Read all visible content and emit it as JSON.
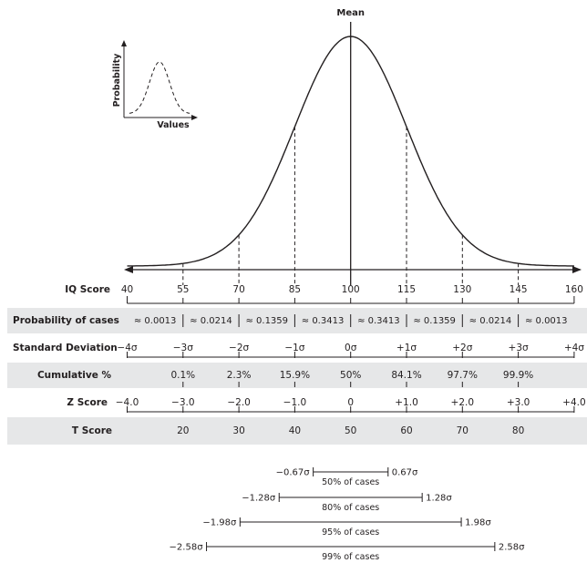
{
  "mean_label": "Mean",
  "inset": {
    "y_label": "Probability",
    "x_label": "Values"
  },
  "curve": {
    "mean": 100,
    "sd": 15,
    "x_min": 40,
    "x_max": 160
  },
  "sd_markers": [
    55,
    70,
    85,
    115,
    130,
    145
  ],
  "iq": {
    "label": "IQ Score",
    "ticks": [
      "40",
      "55",
      "70",
      "85",
      "100",
      "115",
      "130",
      "145",
      "160"
    ]
  },
  "probability": {
    "label": "Probability of cases",
    "values": [
      "≈ 0.0013",
      "≈ 0.0214",
      "≈ 0.1359",
      "≈ 0.3413",
      "≈ 0.3413",
      "≈ 0.1359",
      "≈ 0.0214",
      "≈ 0.0013"
    ]
  },
  "sd_row": {
    "label": "Standard Deviation",
    "values": [
      "−4σ",
      "−3σ",
      "−2σ",
      "−1σ",
      "0σ",
      "+1σ",
      "+2σ",
      "+3σ",
      "+4σ"
    ]
  },
  "cumulative": {
    "label": "Cumulative %",
    "values": [
      "0.1%",
      "2.3%",
      "15.9%",
      "50%",
      "84.1%",
      "97.7%",
      "99.9%"
    ]
  },
  "z_row": {
    "label": "Z Score",
    "values": [
      "−4.0",
      "−3.0",
      "−2.0",
      "−1.0",
      "0",
      "+1.0",
      "+2.0",
      "+3.0",
      "+4.0"
    ]
  },
  "t_row": {
    "label": "T Score",
    "values": [
      "20",
      "30",
      "40",
      "50",
      "60",
      "70",
      "80"
    ]
  },
  "intervals": [
    {
      "left": "−0.67σ",
      "right": "0.67σ",
      "z": 0.67,
      "text": "50% of cases"
    },
    {
      "left": "−1.28σ",
      "right": "1.28σ",
      "z": 1.28,
      "text": "80% of cases"
    },
    {
      "left": "−1.98σ",
      "right": "1.98σ",
      "z": 1.98,
      "text": "95% of cases"
    },
    {
      "left": "−2.58σ",
      "right": "2.58σ",
      "z": 2.58,
      "text": "99% of cases"
    }
  ],
  "colors": {
    "ink": "#231f20",
    "band": "#e6e7e8"
  }
}
